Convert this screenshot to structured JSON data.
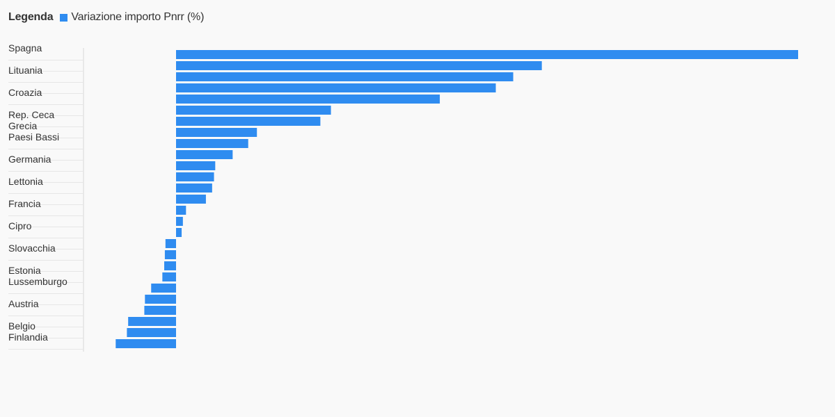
{
  "legend": {
    "title": "Legenda",
    "series_label": "Variazione importo Pnrr (%)"
  },
  "colors": {
    "bar": "#2f8cf0",
    "axis": "#d8d8d8",
    "background": "#f9f9f9",
    "text": "#333333"
  },
  "chart_data": {
    "type": "bar",
    "orientation": "horizontal",
    "series": [
      {
        "name": "Variazione importo Pnrr (%)"
      }
    ],
    "categories": [
      "Spagna",
      "",
      "Lituania",
      "",
      "Croazia",
      "",
      "Rep. Ceca",
      "Grecia",
      "Paesi Bassi",
      "",
      "Germania",
      "",
      "Lettonia",
      "",
      "Francia",
      "",
      "Cipro",
      "",
      "Slovacchia",
      "",
      "Estonia",
      "Lussemburgo",
      "",
      "Austria",
      "",
      "Belgio",
      "Finlandia"
    ],
    "values": [
      100,
      58.8,
      54.2,
      51.4,
      42.4,
      24.9,
      23.2,
      13.0,
      11.6,
      9.1,
      6.3,
      6.1,
      5.8,
      4.8,
      1.6,
      1.1,
      0.9,
      -1.7,
      -1.8,
      -1.9,
      -2.2,
      -4.0,
      -5.0,
      -5.1,
      -7.7,
      -7.9,
      -9.7
    ],
    "xlim": [
      -9.7,
      100
    ],
    "grid": false,
    "legend_position": "top-left"
  }
}
